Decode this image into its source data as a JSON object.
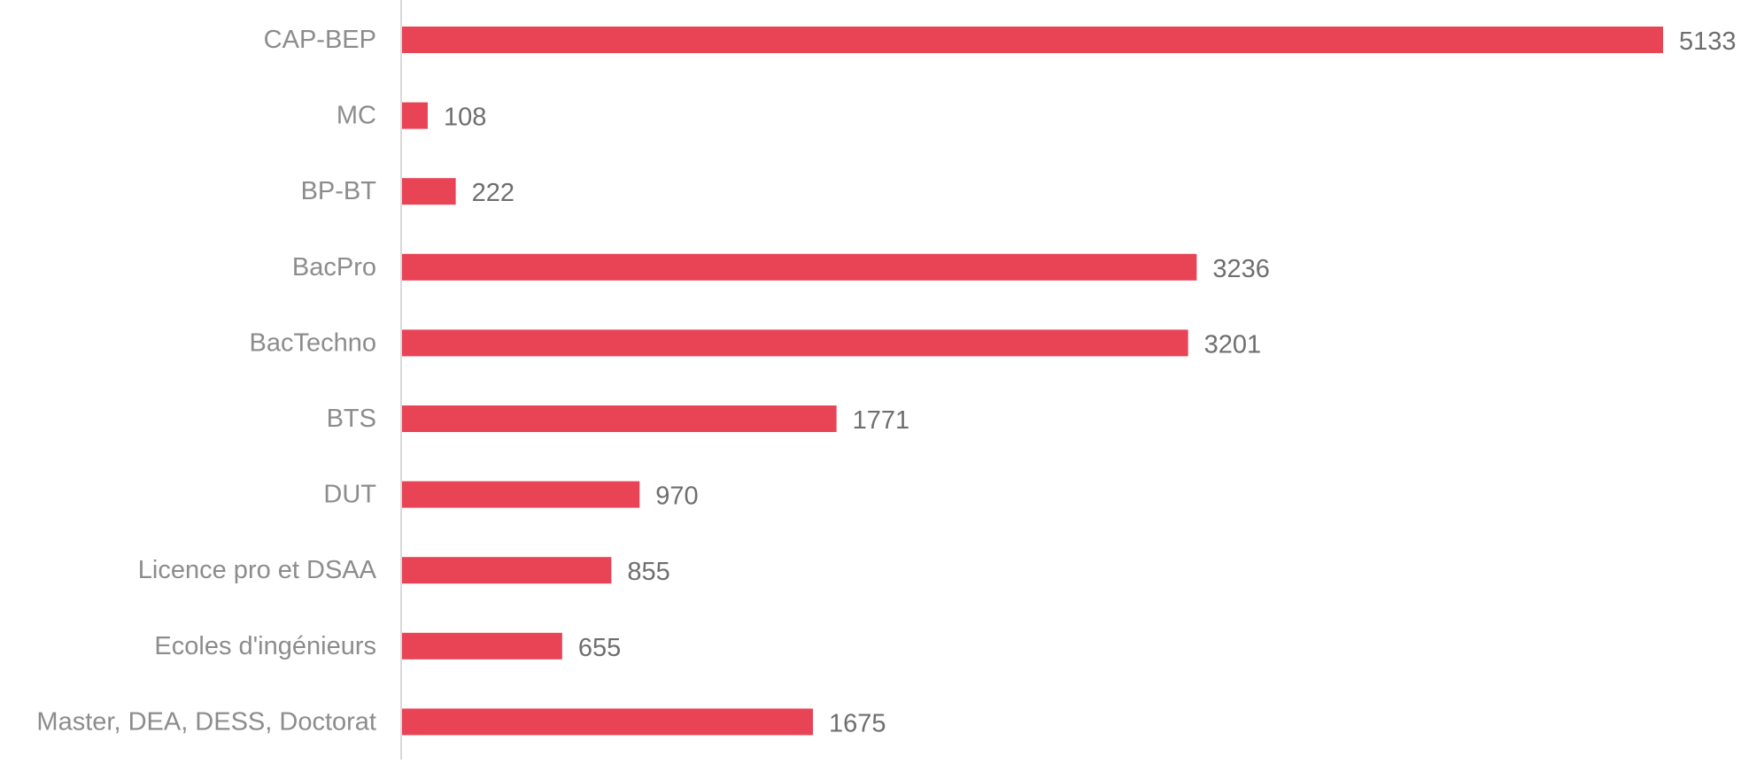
{
  "chart_data": {
    "type": "bar",
    "orientation": "horizontal",
    "title": "",
    "xlabel": "",
    "ylabel": "",
    "categories": [
      "CAP-BEP",
      "MC",
      "BP-BT",
      "BacPro",
      "BacTechno",
      "BTS",
      "DUT",
      "Licence pro et DSAA",
      "Ecoles d'ingénieurs",
      "Master, DEA, DESS, Doctorat"
    ],
    "values": [
      5133,
      108,
      222,
      3236,
      3201,
      1771,
      970,
      855,
      655,
      1675
    ],
    "value_labels": [
      "5133",
      "108",
      "222",
      "3236",
      "3201",
      "1771",
      "970",
      "855",
      "655",
      "1675"
    ],
    "xlim": [
      0,
      5133
    ],
    "grid": false,
    "legend": "none",
    "colors": {
      "bar": "#E84455",
      "category_label": "#8C8C8C",
      "value_label": "#6E6E6E",
      "axis_line": "#D9D9D9",
      "background": "#FFFFFF"
    }
  }
}
